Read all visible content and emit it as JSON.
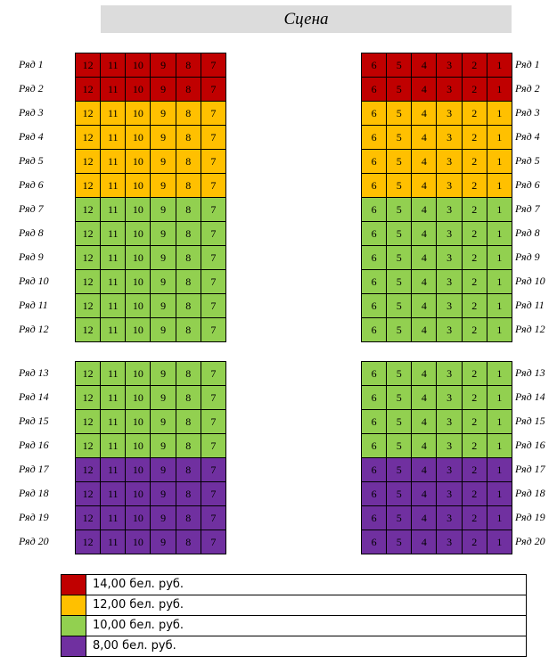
{
  "stage_label": "Сцена",
  "rows": [
    {
      "label": "Ряд 1",
      "price": "red"
    },
    {
      "label": "Ряд 2",
      "price": "red"
    },
    {
      "label": "Ряд 3",
      "price": "orange"
    },
    {
      "label": "Ряд 4",
      "price": "orange"
    },
    {
      "label": "Ряд 5",
      "price": "orange"
    },
    {
      "label": "Ряд 6",
      "price": "orange"
    },
    {
      "label": "Ряд 7",
      "price": "green"
    },
    {
      "label": "Ряд 8",
      "price": "green"
    },
    {
      "label": "Ряд 9",
      "price": "green"
    },
    {
      "label": "Ряд 10",
      "price": "green"
    },
    {
      "label": "Ряд 11",
      "price": "green"
    },
    {
      "label": "Ряд 12",
      "price": "green"
    },
    {
      "label": "Ряд 13",
      "price": "green"
    },
    {
      "label": "Ряд 14",
      "price": "green"
    },
    {
      "label": "Ряд 15",
      "price": "green"
    },
    {
      "label": "Ряд 16",
      "price": "green"
    },
    {
      "label": "Ряд 17",
      "price": "purple"
    },
    {
      "label": "Ряд 18",
      "price": "purple"
    },
    {
      "label": "Ряд 19",
      "price": "purple"
    },
    {
      "label": "Ряд 20",
      "price": "purple"
    }
  ],
  "left_seats": [
    "12",
    "11",
    "10",
    "9",
    "8",
    "7"
  ],
  "right_seats": [
    "6",
    "5",
    "4",
    "3",
    "2",
    "1"
  ],
  "colors": {
    "red": "#c00000",
    "orange": "#ffc000",
    "green": "#92d050",
    "purple": "#7030a0"
  },
  "legend": [
    {
      "color": "red",
      "text": "14,00 бел. руб."
    },
    {
      "color": "orange",
      "text": "12,00 бел. руб."
    },
    {
      "color": "green",
      "text": "10,00 бел. руб."
    },
    {
      "color": "purple",
      "text": "8,00 бел. руб."
    }
  ]
}
